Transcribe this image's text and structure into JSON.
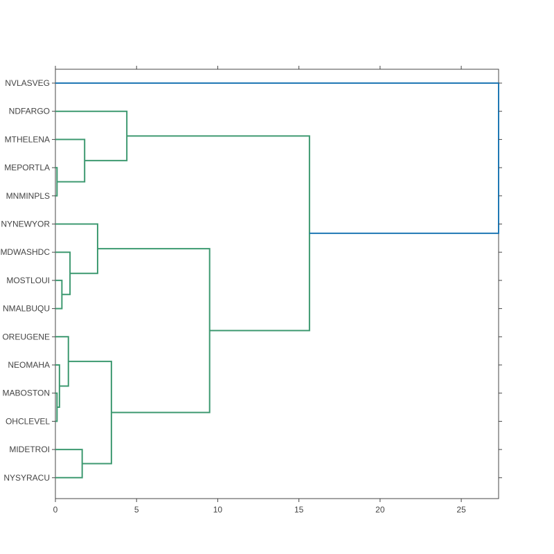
{
  "chart_data": {
    "type": "dendrogram",
    "title": "",
    "xlabel": "",
    "ylabel": "",
    "orientation": "left",
    "xlim": [
      0,
      27.3
    ],
    "x_ticks": [
      0,
      5,
      10,
      15,
      20,
      25
    ],
    "leaves": [
      "NVLASVEG",
      "NDFARGO",
      "MTHELENA",
      "MEPORTLA",
      "MNMINPLS",
      "NYNEWYOR",
      "MDWASHDC",
      "MOSTLOUI",
      "NMALBUQU",
      "OREUGENE",
      "NEOMAHA",
      "MABOSTON",
      "OHCLEVEL",
      "MIDETROI",
      "NYSYRACU"
    ],
    "colors": {
      "cluster": "#3d9970",
      "root": "#1f77b4",
      "axis": "#444444"
    },
    "merges": [
      {
        "id": "n1",
        "left": "MEPORTLA",
        "right": "MNMINPLS",
        "height": 0.1
      },
      {
        "id": "n2",
        "left": "MTHELENA",
        "right": "n1",
        "height": 1.8
      },
      {
        "id": "n3",
        "left": "NDFARGO",
        "right": "n2",
        "height": 4.4
      },
      {
        "id": "n4",
        "left": "MOSTLOUI",
        "right": "NMALBUQU",
        "height": 0.4
      },
      {
        "id": "n5",
        "left": "MDWASHDC",
        "right": "n4",
        "height": 0.9
      },
      {
        "id": "n6",
        "left": "NYNEWYOR",
        "right": "n5",
        "height": 2.6
      },
      {
        "id": "n7",
        "left": "MABOSTON",
        "right": "OHCLEVEL",
        "height": 0.1
      },
      {
        "id": "n8",
        "left": "NEOMAHA",
        "right": "n7",
        "height": 0.25
      },
      {
        "id": "n9",
        "left": "OREUGENE",
        "right": "n8",
        "height": 0.8
      },
      {
        "id": "n10",
        "left": "MIDETROI",
        "right": "NYSYRACU",
        "height": 1.65
      },
      {
        "id": "n11",
        "left": "n9",
        "right": "n10",
        "height": 3.45
      },
      {
        "id": "n12",
        "left": "n6",
        "right": "n11",
        "height": 9.5
      },
      {
        "id": "n13",
        "left": "n3",
        "right": "n12",
        "height": 15.65
      },
      {
        "id": "n14",
        "left": "NVLASVEG",
        "right": "n13",
        "height": 27.3,
        "color": "root"
      }
    ]
  }
}
